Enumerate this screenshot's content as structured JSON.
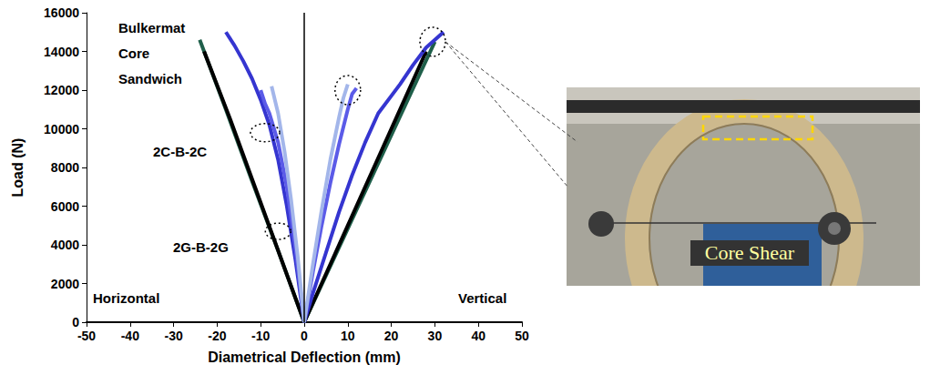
{
  "chart_data": {
    "type": "line",
    "x_label": "Diametrical Deflection (mm)",
    "y_label": "Load (N)",
    "xlim": [
      -50,
      50
    ],
    "xticks": [
      -50,
      -40,
      -30,
      -20,
      -10,
      0,
      10,
      20,
      30,
      40,
      50
    ],
    "ylim": [
      0,
      16000
    ],
    "yticks": [
      0,
      2000,
      4000,
      6000,
      8000,
      10000,
      12000,
      14000,
      16000
    ],
    "grid": false,
    "annotations": [
      {
        "text": "Bulkermat Core Sandwich"
      },
      {
        "text": "2C-B-2C"
      },
      {
        "text": "2G-B-2G"
      },
      {
        "text": "Horizontal"
      },
      {
        "text": "Vertical"
      }
    ],
    "series": [
      {
        "color": "#1f5f4a",
        "x": [
          -24,
          -18,
          -12,
          -6,
          0,
          6,
          12,
          18,
          24,
          30
        ],
        "values": [
          14600,
          11000,
          7300,
          3700,
          0,
          2900,
          5800,
          8700,
          11600,
          14500
        ]
      },
      {
        "color": "#000000",
        "x": [
          -23,
          -17,
          -11,
          -5.5,
          0,
          6,
          12,
          18,
          24,
          28
        ],
        "values": [
          14000,
          10500,
          6800,
          3400,
          0,
          3000,
          6000,
          9000,
          12000,
          14000
        ]
      },
      {
        "color": "#3535d0",
        "x": [
          -18,
          -16,
          -14,
          -12,
          -10,
          -8,
          -6,
          -4,
          -2,
          0,
          2,
          5,
          8,
          11,
          14,
          17,
          20,
          22,
          25,
          28,
          32
        ],
        "values": [
          15000,
          14300,
          13500,
          12600,
          11500,
          10200,
          8400,
          6000,
          3200,
          0,
          1500,
          3600,
          5700,
          7600,
          9300,
          10800,
          11700,
          12300,
          13300,
          14200,
          15000
        ]
      },
      {
        "color": "#5b5be8",
        "x": [
          -10,
          -9,
          -8,
          -6,
          -4,
          -2,
          0,
          2,
          4,
          6,
          8,
          10,
          11,
          12
        ],
        "values": [
          12000,
          11300,
          10800,
          9300,
          7000,
          3800,
          0,
          2600,
          5000,
          7200,
          9200,
          11000,
          11800,
          12100
        ]
      },
      {
        "color": "#a3b6ea",
        "x": [
          -7.5,
          -6,
          -4.5,
          -3,
          -1.5,
          0,
          2,
          4,
          6,
          8,
          9,
          10
        ],
        "values": [
          12200,
          10800,
          8800,
          6300,
          3400,
          0,
          3000,
          5800,
          8400,
          10600,
          11600,
          12300
        ]
      }
    ]
  },
  "photo": {
    "label": "Core Shear"
  }
}
